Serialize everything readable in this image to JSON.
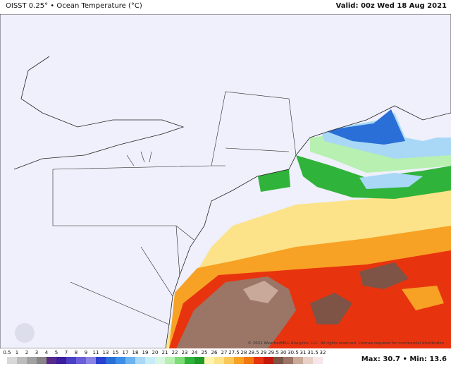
{
  "header": {
    "title": "OISST 0.25° • Ocean Temperature (°C)",
    "valid": "Valid: 00z Wed 18 Aug 2021"
  },
  "copyright": "© 2021 WeatherBELL Analytics, LLC. All rights reserved. License required for commercial distribution.",
  "stats": "Max: 30.7 • Min: 13.6",
  "colorbar": {
    "labels": [
      0.5,
      1,
      2,
      3,
      4,
      5,
      7,
      8,
      9,
      11,
      13,
      15,
      17,
      18,
      19,
      20,
      21,
      22,
      23,
      24,
      25,
      26,
      27,
      27.5,
      28,
      28.5,
      29,
      29.5,
      30,
      30.5,
      31,
      31.5,
      32
    ]
  }
}
